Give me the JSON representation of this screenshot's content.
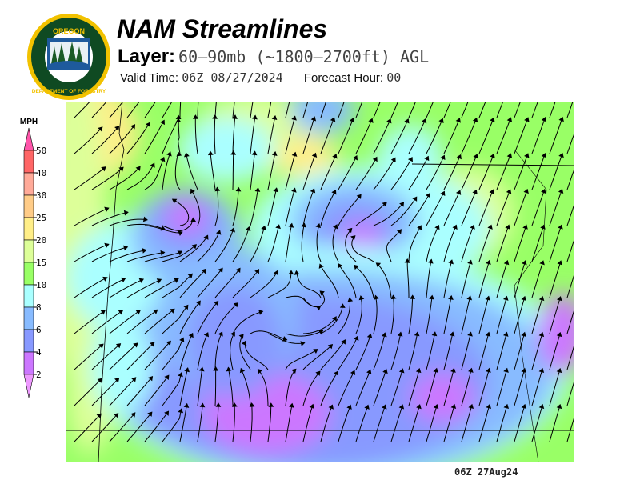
{
  "header": {
    "title": "NAM Streamlines",
    "layer_label": "Layer:",
    "layer_value": "60–90mb (~1800–2700ft) AGL",
    "valid_label": "Valid Time:",
    "valid_value": "06Z 08/27/2024",
    "forecast_label": "Forecast Hour:",
    "forecast_value": "00"
  },
  "logo": {
    "top_text": "OREGON",
    "bottom_text": "DEPARTMENT OF FORESTRY",
    "colors": {
      "ring": "#f2c200",
      "field": "#0f4a22"
    }
  },
  "legend": {
    "unit": "MPH",
    "ticks": [
      "50",
      "40",
      "30",
      "25",
      "20",
      "15",
      "10",
      "8",
      "6",
      "4",
      "2"
    ],
    "colors": [
      "#ff55aa",
      "#ff6666",
      "#ffaa99",
      "#ffcc88",
      "#ffee88",
      "#ddff99",
      "#99ff66",
      "#aaffff",
      "#88bbff",
      "#8899ff",
      "#cc77ff",
      "#ee99ff"
    ]
  },
  "footer": {
    "timestamp": "06Z 27Aug24"
  }
}
